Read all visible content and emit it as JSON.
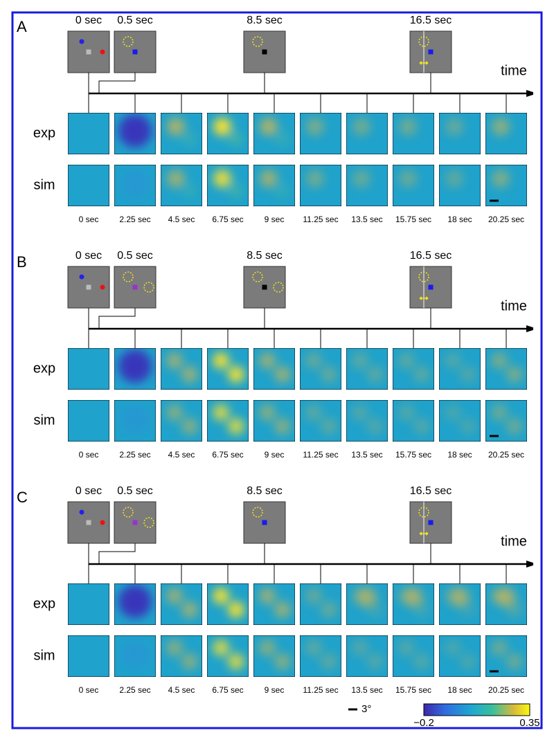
{
  "panels": [
    {
      "label": "A",
      "frames": [
        "0 sec",
        "0.5 sec",
        "8.5 sec",
        "16.5 sec"
      ],
      "axis_label": "time",
      "rows": [
        "exp",
        "sim"
      ],
      "times": [
        "0 sec",
        "2.25 sec",
        "4.5 sec",
        "6.75 sec",
        "9 sec",
        "11.25 sec",
        "13.5 sec",
        "15.75 sec",
        "18 sec",
        "20.25 sec"
      ]
    },
    {
      "label": "B",
      "frames": [
        "0 sec",
        "0.5 sec",
        "8.5 sec",
        "16.5 sec"
      ],
      "axis_label": "time",
      "rows": [
        "exp",
        "sim"
      ],
      "times": [
        "0 sec",
        "2.25 sec",
        "4.5 sec",
        "6.75 sec",
        "9 sec",
        "11.25 sec",
        "13.5 sec",
        "15.75 sec",
        "18 sec",
        "20.25 sec"
      ]
    },
    {
      "label": "C",
      "frames": [
        "0 sec",
        "0.5 sec",
        "8.5 sec",
        "16.5 sec"
      ],
      "axis_label": "time",
      "rows": [
        "exp",
        "sim"
      ],
      "times": [
        "0 sec",
        "2.25 sec",
        "4.5 sec",
        "6.75 sec",
        "9 sec",
        "11.25 sec",
        "13.5 sec",
        "15.75 sec",
        "18 sec",
        "20.25 sec"
      ]
    }
  ],
  "scale_label": "3°",
  "colorbar": {
    "min_label": "−0.2",
    "max_label": "0.35"
  }
}
